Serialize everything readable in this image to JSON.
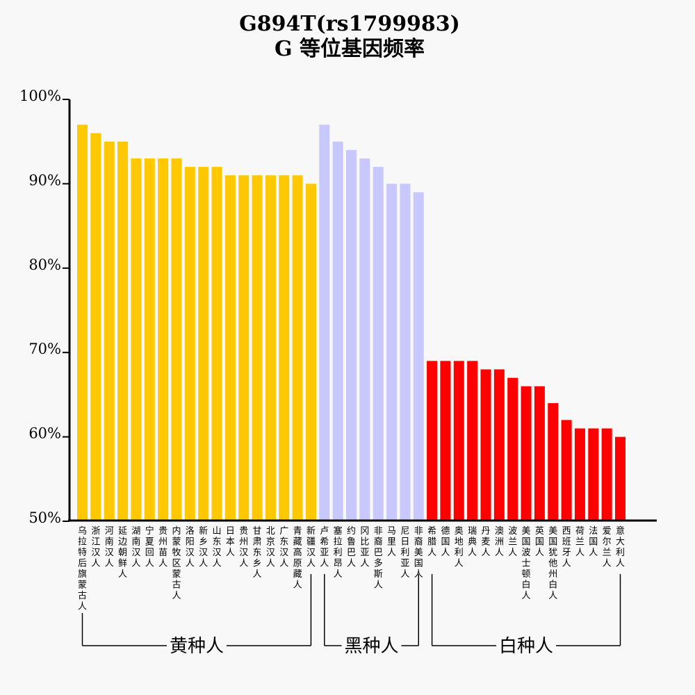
{
  "chart_data": {
    "type": "bar",
    "title": "G894T(rs1799983)",
    "subtitle": "G 等位基因频率",
    "yticks": [
      "100%",
      "90%",
      "80%",
      "70%",
      "60%",
      "50%"
    ],
    "ylim": [
      50,
      100
    ],
    "grid": false,
    "categories": [
      "乌拉特后旗蒙古人",
      "浙江汉人",
      "河南汉人",
      "延边朝鲜人",
      "湖南汉人",
      "宁夏回人",
      "贵州苗人",
      "内蒙牧区蒙古人",
      "洛阳汉人",
      "新乡汉人",
      "山东汉人",
      "日本人",
      "贵州汉人",
      "甘肃东乡人",
      "北京汉人",
      "广东汉人",
      "青藏高原藏人",
      "新疆汉人",
      "卢希亚人",
      "塞拉利昂人",
      "约鲁巴人",
      "冈比亚人",
      "非裔巴多斯人",
      "马里人",
      "尼日利亚人",
      "非裔美国人",
      "希腊人",
      "德国人",
      "奥地利人",
      "瑞典人",
      "丹麦人",
      "澳洲人",
      "波兰人",
      "美国波士顿白人",
      "英国人",
      "美国犹他州白人",
      "西班牙人",
      "荷兰人",
      "法国人",
      "爱尔兰人",
      "意大利人"
    ],
    "values": [
      97,
      96,
      95,
      95,
      93,
      93,
      93,
      93,
      92,
      92,
      92,
      91,
      91,
      91,
      91,
      91,
      91,
      90,
      97,
      95,
      94,
      93,
      92,
      90,
      90,
      89,
      69,
      69,
      69,
      69,
      68,
      68,
      67,
      66,
      66,
      64,
      62,
      61,
      61,
      61,
      60
    ],
    "groups": [
      {
        "label": "黄种人",
        "start": 0,
        "end": 17,
        "color": "#FFC800"
      },
      {
        "label": "黑种人",
        "start": 18,
        "end": 25,
        "color": "#C8C8FF"
      },
      {
        "label": "白种人",
        "start": 26,
        "end": 40,
        "color": "#FF0000"
      }
    ]
  }
}
